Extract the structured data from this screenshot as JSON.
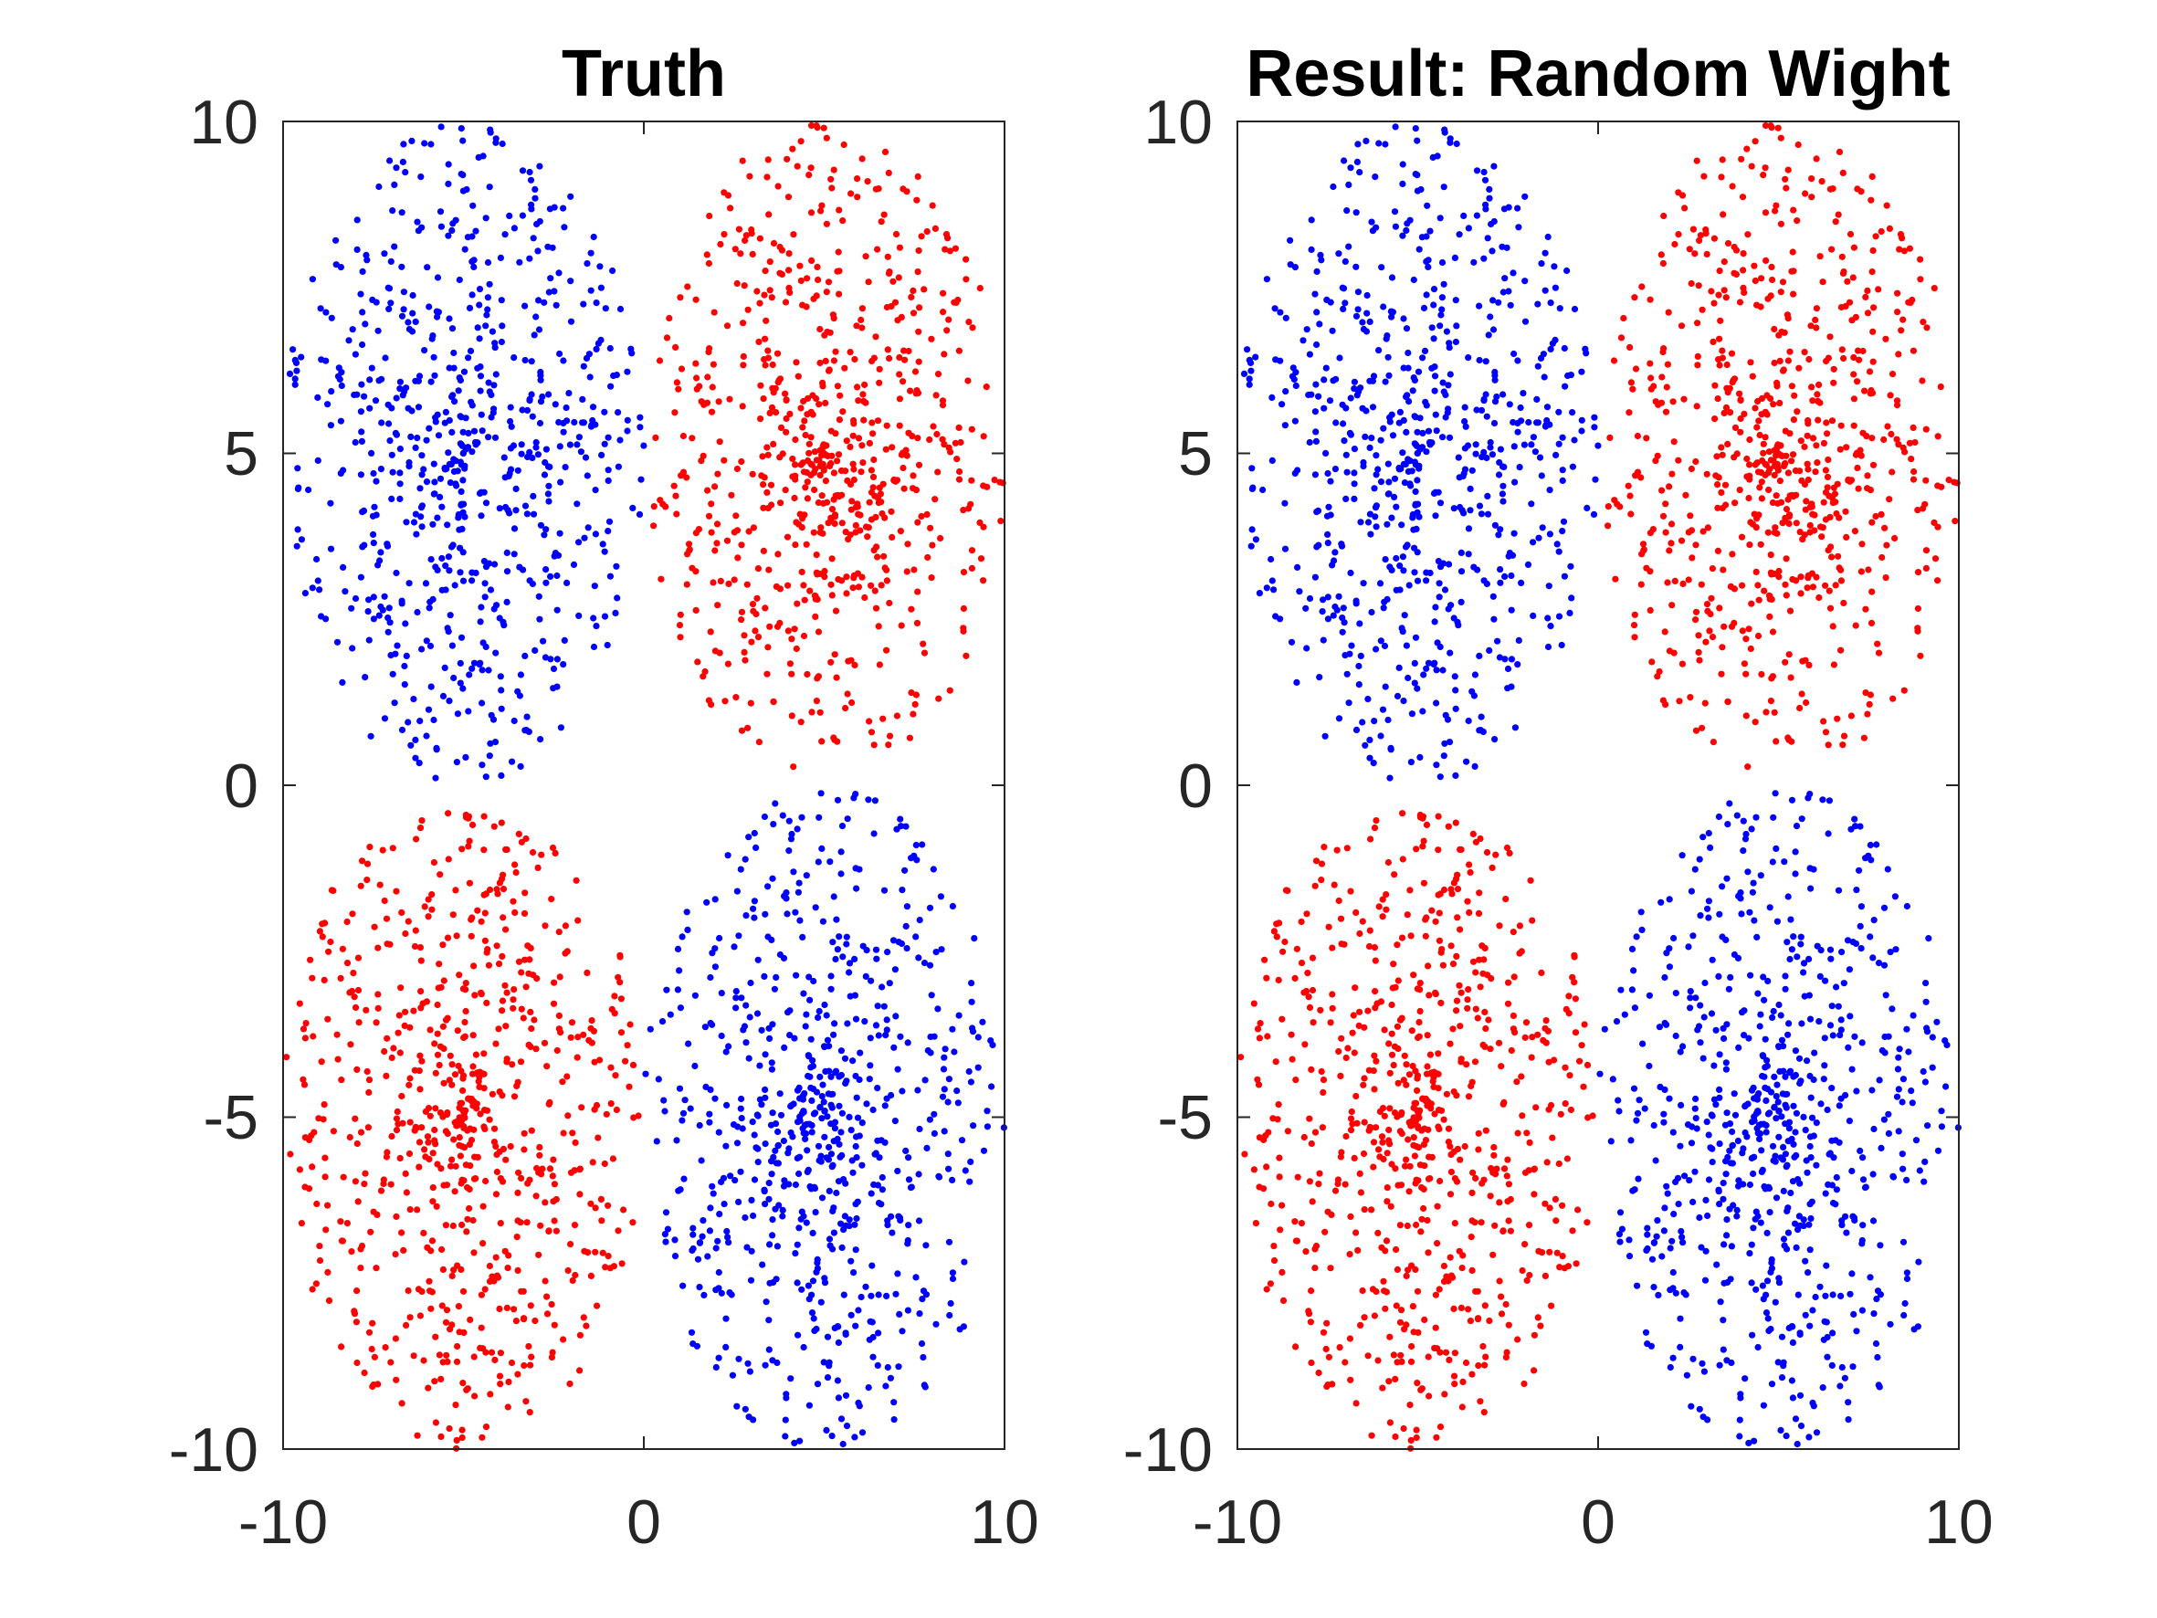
{
  "chart_data": [
    {
      "type": "scatter",
      "title": "Truth",
      "xlabel": "",
      "ylabel": "",
      "xlim": [
        -10,
        10
      ],
      "ylim": [
        -10,
        10
      ],
      "xticks": [
        "-10",
        "0",
        "10"
      ],
      "yticks": [
        "10",
        "5",
        "0",
        "-5",
        "-10"
      ],
      "grid": false,
      "legend": "none",
      "clusters": [
        {
          "color": "#0000ff",
          "center_x": -5,
          "center_y": 5,
          "extent_x": 5,
          "extent_y": 5,
          "points": 700
        },
        {
          "color": "#ff0000",
          "center_x": 5,
          "center_y": 5,
          "extent_x": 5,
          "extent_y": 5,
          "points": 700
        },
        {
          "color": "#ff0000",
          "center_x": -5,
          "center_y": -5,
          "extent_x": 5,
          "extent_y": 5,
          "points": 700
        },
        {
          "color": "#0000ff",
          "center_x": 5,
          "center_y": -5,
          "extent_x": 5,
          "extent_y": 5,
          "points": 700
        }
      ]
    },
    {
      "type": "scatter",
      "title": "Result: Random Wight",
      "xlabel": "",
      "ylabel": "",
      "xlim": [
        -10,
        10
      ],
      "ylim": [
        -10,
        10
      ],
      "xticks": [
        "-10",
        "0",
        "10"
      ],
      "yticks": [
        "10",
        "5",
        "0",
        "-5",
        "-10"
      ],
      "grid": false,
      "legend": "none",
      "clusters": [
        {
          "color": "#0000ff",
          "center_x": -5,
          "center_y": 5,
          "extent_x": 5,
          "extent_y": 5,
          "points": 700
        },
        {
          "color": "#ff0000",
          "center_x": 5,
          "center_y": 5,
          "extent_x": 5,
          "extent_y": 5,
          "points": 700
        },
        {
          "color": "#ff0000",
          "center_x": -5,
          "center_y": -5,
          "extent_x": 5,
          "extent_y": 5,
          "points": 700
        },
        {
          "color": "#0000ff",
          "center_x": 5,
          "center_y": -5,
          "extent_x": 5,
          "extent_y": 5,
          "points": 700
        }
      ]
    }
  ]
}
